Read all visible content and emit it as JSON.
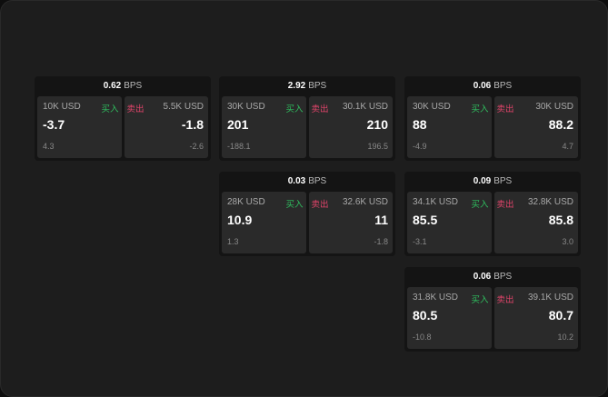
{
  "unit": "BPS",
  "buy_label": "买入",
  "sell_label": "卖出",
  "colors": {
    "buy": "#2fbf5f",
    "sell": "#e0446a"
  },
  "panels": [
    {
      "spread": "0.62",
      "bid": {
        "size": "10K USD",
        "price": "-3.7",
        "change": "4.3"
      },
      "ask": {
        "size": "5.5K USD",
        "price": "-1.8",
        "change": "-2.6"
      }
    },
    {
      "spread": "2.92",
      "bid": {
        "size": "30K USD",
        "price": "201",
        "change": "-188.1"
      },
      "ask": {
        "size": "30.1K USD",
        "price": "210",
        "change": "196.5"
      }
    },
    {
      "spread": "0.06",
      "bid": {
        "size": "30K USD",
        "price": "88",
        "change": "-4.9"
      },
      "ask": {
        "size": "30K USD",
        "price": "88.2",
        "change": "4.7"
      }
    },
    {
      "spread": "0.03",
      "bid": {
        "size": "28K USD",
        "price": "10.9",
        "change": "1.3"
      },
      "ask": {
        "size": "32.6K USD",
        "price": "11",
        "change": "-1.8"
      }
    },
    {
      "spread": "0.09",
      "bid": {
        "size": "34.1K USD",
        "price": "85.5",
        "change": "-3.1"
      },
      "ask": {
        "size": "32.8K USD",
        "price": "85.8",
        "change": "3.0"
      }
    },
    {
      "spread": "0.06",
      "bid": {
        "size": "31.8K USD",
        "price": "80.5",
        "change": "-10.8"
      },
      "ask": {
        "size": "39.1K USD",
        "price": "80.7",
        "change": "10.2"
      }
    }
  ]
}
